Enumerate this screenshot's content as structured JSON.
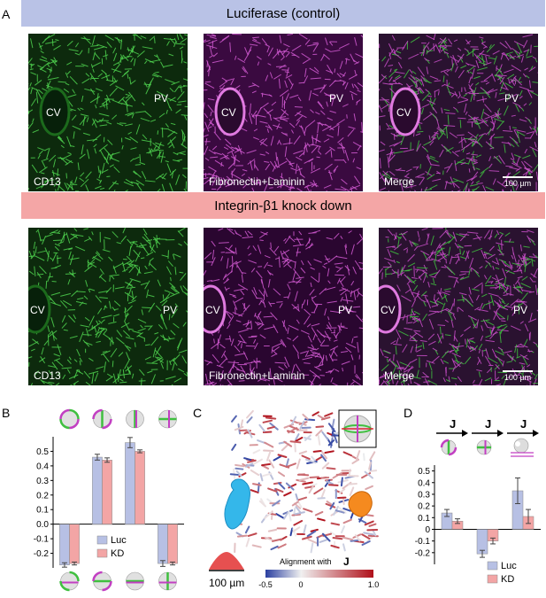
{
  "panelA": {
    "label": "A",
    "banner_control": "Luciferase (control)",
    "banner_kd": "Integrin-β1 knock down",
    "stain_cd13": "CD13",
    "stain_fn": "Fibronectin+Laminin",
    "stain_merge": "Merge",
    "cv": "CV",
    "pv": "PV",
    "scalebar": "100 µm"
  },
  "panelB": {
    "label": "B"
  },
  "panelC": {
    "label": "C",
    "scalebar": "100 µm",
    "colorbar_title": "Alignment with",
    "colorbar_symbol": "J",
    "colorbar_ticks": [
      "-0.5",
      "0",
      "1.0"
    ]
  },
  "panelD": {
    "label": "D",
    "arrow_symbol": "J"
  },
  "colors": {
    "luc": "#b7c0e4",
    "kd": "#f3a5a5",
    "green": "#3fbf3f",
    "magenta": "#c23fc2"
  },
  "chart_data": [
    {
      "type": "bar",
      "panel": "B",
      "categories": [
        "1",
        "2",
        "3",
        "4"
      ],
      "series": [
        {
          "name": "Luc",
          "values": [
            -0.28,
            0.46,
            0.56,
            -0.27
          ],
          "errors": [
            0.015,
            0.02,
            0.035,
            0.02
          ]
        },
        {
          "name": "KD",
          "values": [
            -0.27,
            0.44,
            0.5,
            -0.27
          ],
          "errors": [
            0.01,
            0.015,
            0.01,
            0.01
          ]
        }
      ],
      "ylim": [
        -0.3,
        0.6
      ],
      "yticks": [
        "-0.2",
        "-0.1",
        "0.0",
        "0.1",
        "0.2",
        "0.3",
        "0.4",
        "0.5"
      ],
      "legend": "lower-center"
    },
    {
      "type": "bar",
      "panel": "D",
      "categories": [
        "1",
        "2",
        "3"
      ],
      "series": [
        {
          "name": "Luc",
          "values": [
            0.14,
            -0.21,
            0.33
          ],
          "errors": [
            0.03,
            0.03,
            0.11
          ]
        },
        {
          "name": "KD",
          "values": [
            0.07,
            -0.1,
            0.11
          ],
          "errors": [
            0.02,
            0.025,
            0.06
          ]
        }
      ],
      "ylim": [
        -0.3,
        0.55
      ],
      "yticks": [
        "-0.2",
        "-0.1",
        "0",
        "0.1",
        "0.2",
        "0.3",
        "0.4",
        "0.5"
      ],
      "legend": "lower-right"
    }
  ]
}
